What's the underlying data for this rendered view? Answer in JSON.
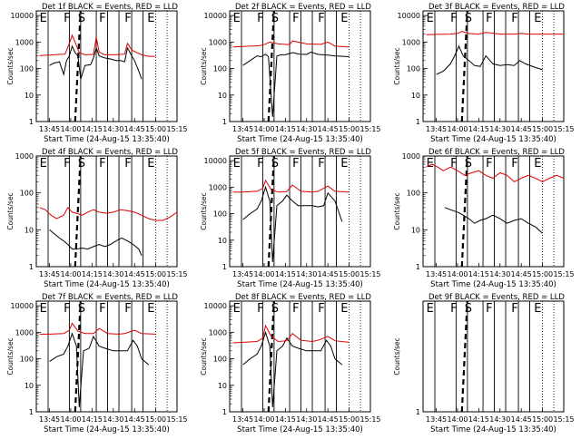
{
  "colors": {
    "events": "#000000",
    "lld": "#dd0000",
    "background": "#ffffff"
  },
  "common": {
    "xlabel": "Start Time (24-Aug-15 13:35:40)",
    "ylabel": "Counts/sec",
    "xtick_labels": [
      "13:45",
      "14:00",
      "14:15",
      "14:30",
      "14:45",
      "15:00",
      "15:15"
    ],
    "ytick_labels": [
      "1",
      "10",
      "100",
      "1000",
      "10000"
    ],
    "region_labels": [
      "E",
      "F",
      "S",
      "F",
      "F",
      "E"
    ]
  },
  "chart_data": [
    {
      "type": "line",
      "title": "Det 1f BLACK = Events, RED = LLD",
      "detector": "1f",
      "x_range": [
        "13:35:40",
        "15:15:00"
      ],
      "y_log": true,
      "ylim": [
        1,
        15000
      ],
      "series": [
        {
          "name": "Events",
          "color": "#000000",
          "x": [
            "13:45",
            "13:48",
            "13:52",
            "13:55",
            "13:57",
            "13:59",
            "14:01",
            "14:03",
            "14:05",
            "14:07",
            "14:10",
            "14:14",
            "14:16",
            "14:18",
            "14:20",
            "14:24",
            "14:28",
            "14:32",
            "14:35",
            "14:38",
            "14:40",
            "14:43",
            "14:45",
            "14:48",
            "14:50"
          ],
          "y": [
            130,
            160,
            180,
            60,
            200,
            300,
            700,
            400,
            300,
            40,
            130,
            140,
            250,
            600,
            300,
            250,
            230,
            200,
            200,
            180,
            600,
            300,
            200,
            80,
            40
          ]
        },
        {
          "name": "LLD",
          "color": "#dd0000",
          "x": [
            "13:38",
            "13:45",
            "13:52",
            "13:56",
            "13:59",
            "14:01",
            "14:03",
            "14:06",
            "14:10",
            "14:16",
            "14:18",
            "14:20",
            "14:24",
            "14:30",
            "14:38",
            "14:40",
            "14:43",
            "14:50",
            "14:55",
            "15:00"
          ],
          "y": [
            310,
            320,
            340,
            350,
            900,
            1800,
            1000,
            400,
            330,
            340,
            1500,
            420,
            330,
            330,
            350,
            900,
            500,
            330,
            290,
            290
          ]
        }
      ],
      "vlines": [
        "13:44",
        "13:59",
        "14:07",
        "14:18",
        "14:26",
        "14:34",
        "14:43",
        "14:51",
        "15:00",
        "15:08"
      ],
      "dashed": "14:05"
    },
    {
      "type": "line",
      "title": "Det 2f BLACK = Events, RED = LLD",
      "detector": "2f",
      "x_range": [
        "13:35:40",
        "15:15:00"
      ],
      "y_log": true,
      "ylim": [
        1,
        15000
      ],
      "series": [
        {
          "name": "Events",
          "color": "#000000",
          "x": [
            "13:45",
            "13:50",
            "13:55",
            "13:58",
            "14:01",
            "14:03",
            "14:06",
            "14:09",
            "14:12",
            "14:15",
            "14:20",
            "14:25",
            "14:30",
            "14:33",
            "14:38",
            "14:45",
            "14:50",
            "15:00"
          ],
          "y": [
            130,
            200,
            300,
            280,
            350,
            280,
            1.5,
            300,
            330,
            330,
            400,
            350,
            340,
            420,
            340,
            320,
            300,
            280
          ]
        },
        {
          "name": "LLD",
          "color": "#dd0000",
          "x": [
            "13:38",
            "13:45",
            "13:50",
            "13:56",
            "14:00",
            "14:04",
            "14:10",
            "14:18",
            "14:20",
            "14:30",
            "14:40",
            "14:45",
            "14:50",
            "15:00"
          ],
          "y": [
            650,
            680,
            700,
            720,
            800,
            1000,
            850,
            800,
            1100,
            850,
            820,
            1000,
            700,
            650
          ]
        }
      ],
      "vlines": [
        "13:44",
        "13:59",
        "14:07",
        "14:18",
        "14:26",
        "14:34",
        "14:43",
        "14:51",
        "15:00",
        "15:08"
      ],
      "dashed": "14:05"
    },
    {
      "type": "line",
      "title": "Det 3f BLACK = Events, RED = LLD",
      "detector": "3f",
      "x_range": [
        "13:35:40",
        "15:15:00"
      ],
      "y_log": true,
      "ylim": [
        1,
        15000
      ],
      "series": [
        {
          "name": "Events",
          "color": "#000000",
          "x": [
            "13:45",
            "13:50",
            "13:55",
            "13:58",
            "14:01",
            "14:04",
            "14:08",
            "14:12",
            "14:16",
            "14:20",
            "14:25",
            "14:30",
            "14:35",
            "14:40",
            "14:44",
            "14:48",
            "14:55",
            "15:00"
          ],
          "y": [
            60,
            80,
            150,
            300,
            700,
            300,
            200,
            130,
            120,
            300,
            150,
            130,
            140,
            130,
            200,
            150,
            110,
            90
          ]
        },
        {
          "name": "LLD",
          "color": "#dd0000",
          "x": [
            "13:38",
            "13:45",
            "13:55",
            "14:00",
            "14:03",
            "14:08",
            "14:15",
            "14:20",
            "14:30",
            "14:40",
            "14:45",
            "14:50",
            "15:00",
            "15:10",
            "15:15"
          ],
          "y": [
            1900,
            1950,
            2000,
            2100,
            2500,
            2100,
            2000,
            2300,
            2000,
            2000,
            2100,
            2000,
            2000,
            2000,
            2000
          ]
        }
      ],
      "vlines": [
        "13:44",
        "13:59",
        "14:07",
        "14:18",
        "14:26",
        "14:34",
        "14:43",
        "14:51",
        "15:00",
        "15:08"
      ],
      "dashed": "14:05"
    },
    {
      "type": "line",
      "title": "Det 4f BLACK = Events, RED = LLD",
      "detector": "4f",
      "x_range": [
        "13:35:40",
        "15:15:00"
      ],
      "y_log": true,
      "ylim": [
        1,
        1000
      ],
      "series": [
        {
          "name": "Events",
          "color": "#000000",
          "x": [
            "13:45",
            "13:48",
            "13:52",
            "13:55",
            "13:58",
            "14:01",
            "14:04",
            "14:08",
            "14:12",
            "14:16",
            "14:20",
            "14:24",
            "14:28",
            "14:32",
            "14:36",
            "14:40",
            "14:44",
            "14:48",
            "14:50"
          ],
          "y": [
            10,
            8,
            6,
            5,
            4,
            3,
            3,
            3.2,
            3,
            3.5,
            4,
            3.5,
            4,
            5,
            6,
            5,
            4,
            3,
            2
          ]
        },
        {
          "name": "LLD",
          "color": "#dd0000",
          "x": [
            "13:38",
            "13:42",
            "13:46",
            "13:50",
            "13:55",
            "13:58",
            "14:01",
            "14:04",
            "14:08",
            "14:12",
            "14:16",
            "14:20",
            "14:25",
            "14:30",
            "14:35",
            "14:40",
            "14:45",
            "14:50",
            "14:55",
            "15:00",
            "15:05",
            "15:10",
            "15:15"
          ],
          "y": [
            40,
            35,
            25,
            20,
            25,
            40,
            30,
            28,
            25,
            30,
            35,
            30,
            28,
            30,
            35,
            33,
            30,
            25,
            20,
            18,
            18,
            22,
            30
          ]
        }
      ],
      "vlines": [
        "13:44",
        "13:59",
        "14:07",
        "14:18",
        "14:26",
        "14:34",
        "14:43",
        "14:51",
        "15:00",
        "15:08"
      ],
      "dashed": "14:05"
    },
    {
      "type": "line",
      "title": "Det 5f BLACK = Events, RED = LLD",
      "detector": "5f",
      "x_range": [
        "13:35:40",
        "15:15:00"
      ],
      "y_log": true,
      "ylim": [
        1,
        15000
      ],
      "series": [
        {
          "name": "Events",
          "color": "#000000",
          "x": [
            "13:45",
            "13:50",
            "13:55",
            "13:58",
            "14:01",
            "14:04",
            "14:06",
            "14:09",
            "14:13",
            "14:16",
            "14:20",
            "14:24",
            "14:30",
            "14:34",
            "14:38",
            "14:42",
            "14:45",
            "14:50",
            "14:55"
          ],
          "y": [
            60,
            100,
            150,
            300,
            1000,
            300,
            1.5,
            200,
            300,
            500,
            300,
            200,
            200,
            200,
            180,
            200,
            600,
            300,
            50
          ]
        },
        {
          "name": "LLD",
          "color": "#dd0000",
          "x": [
            "13:38",
            "13:45",
            "13:55",
            "13:59",
            "14:01",
            "14:05",
            "14:10",
            "14:16",
            "14:20",
            "14:26",
            "14:34",
            "14:38",
            "14:45",
            "14:50",
            "15:00"
          ],
          "y": [
            650,
            650,
            700,
            900,
            1800,
            800,
            650,
            680,
            1200,
            700,
            650,
            700,
            1100,
            700,
            650
          ]
        }
      ],
      "vlines": [
        "13:44",
        "13:59",
        "14:07",
        "14:18",
        "14:26",
        "14:34",
        "14:43",
        "14:51",
        "15:00",
        "15:08"
      ],
      "dashed": "14:05"
    },
    {
      "type": "line",
      "title": "Det 6f BLACK = Events, RED = LLD",
      "detector": "6f",
      "x_range": [
        "13:35:40",
        "15:15:00"
      ],
      "y_log": true,
      "ylim": [
        1,
        1000
      ],
      "series": [
        {
          "name": "Events",
          "color": "#000000",
          "x": [
            "13:51",
            "13:55",
            "14:00",
            "14:04",
            "14:08",
            "14:12",
            "14:16",
            "14:20",
            "14:25",
            "14:30",
            "14:35",
            "14:40",
            "14:45",
            "14:50",
            "14:55",
            "15:00"
          ],
          "y": [
            40,
            35,
            30,
            25,
            20,
            15,
            18,
            20,
            25,
            20,
            15,
            18,
            20,
            15,
            12,
            8
          ]
        },
        {
          "name": "LLD",
          "color": "#dd0000",
          "x": [
            "13:38",
            "13:42",
            "13:46",
            "13:50",
            "13:55",
            "14:00",
            "14:05",
            "14:10",
            "14:15",
            "14:20",
            "14:25",
            "14:30",
            "14:35",
            "14:40",
            "14:45",
            "14:50",
            "14:55",
            "15:00",
            "15:05",
            "15:10",
            "15:15"
          ],
          "y": [
            500,
            600,
            500,
            400,
            500,
            400,
            300,
            350,
            400,
            300,
            250,
            350,
            300,
            200,
            250,
            300,
            250,
            200,
            250,
            300,
            250
          ]
        }
      ],
      "vlines": [
        "13:44",
        "13:59",
        "14:07",
        "14:18",
        "14:26",
        "14:34",
        "14:43",
        "14:51",
        "15:00",
        "15:08"
      ],
      "dashed": "14:05"
    },
    {
      "type": "line",
      "title": "Det 7f BLACK = Events, RED = LLD",
      "detector": "7f",
      "x_range": [
        "13:35:40",
        "15:15:00"
      ],
      "y_log": true,
      "ylim": [
        1,
        15000
      ],
      "series": [
        {
          "name": "Events",
          "color": "#000000",
          "x": [
            "13:45",
            "13:50",
            "13:55",
            "13:58",
            "14:01",
            "14:04",
            "14:06",
            "14:09",
            "14:13",
            "14:16",
            "14:20",
            "14:24",
            "14:30",
            "14:35",
            "14:40",
            "14:44",
            "14:47",
            "14:50",
            "14:55"
          ],
          "y": [
            80,
            120,
            150,
            300,
            900,
            300,
            1.5,
            200,
            250,
            700,
            300,
            250,
            200,
            200,
            200,
            500,
            300,
            100,
            60
          ]
        },
        {
          "name": "LLD",
          "color": "#dd0000",
          "x": [
            "13:38",
            "13:45",
            "13:55",
            "13:59",
            "14:01",
            "14:05",
            "14:10",
            "14:16",
            "14:20",
            "14:26",
            "14:34",
            "14:38",
            "14:45",
            "14:50",
            "15:00"
          ],
          "y": [
            850,
            850,
            900,
            1200,
            2200,
            1100,
            900,
            900,
            1400,
            900,
            850,
            900,
            1200,
            900,
            850
          ]
        }
      ],
      "vlines": [
        "13:44",
        "13:59",
        "14:07",
        "14:18",
        "14:26",
        "14:34",
        "14:43",
        "14:51",
        "15:00",
        "15:08"
      ],
      "dashed": "14:05"
    },
    {
      "type": "line",
      "title": "Det 8f BLACK = Events, RED = LLD",
      "detector": "8f",
      "x_range": [
        "13:35:40",
        "15:15:00"
      ],
      "y_log": true,
      "ylim": [
        1,
        15000
      ],
      "series": [
        {
          "name": "Events",
          "color": "#000000",
          "x": [
            "13:45",
            "13:50",
            "13:55",
            "13:58",
            "14:01",
            "14:04",
            "14:06",
            "14:09",
            "14:13",
            "14:16",
            "14:20",
            "14:24",
            "14:30",
            "14:35",
            "14:40",
            "14:44",
            "14:47",
            "14:50",
            "14:55"
          ],
          "y": [
            60,
            100,
            150,
            300,
            1000,
            300,
            1.5,
            200,
            300,
            600,
            300,
            250,
            200,
            200,
            200,
            500,
            300,
            100,
            60
          ]
        },
        {
          "name": "LLD",
          "color": "#dd0000",
          "x": [
            "13:38",
            "13:45",
            "13:55",
            "13:59",
            "14:01",
            "14:05",
            "14:10",
            "14:16",
            "14:20",
            "14:26",
            "14:34",
            "14:38",
            "14:45",
            "14:50",
            "15:00"
          ],
          "y": [
            400,
            420,
            450,
            600,
            1800,
            700,
            450,
            480,
            900,
            500,
            450,
            500,
            700,
            480,
            420
          ]
        }
      ],
      "vlines": [
        "13:44",
        "13:59",
        "14:07",
        "14:18",
        "14:26",
        "14:34",
        "14:43",
        "14:51",
        "15:00",
        "15:08"
      ],
      "dashed": "14:05"
    },
    {
      "type": "line",
      "title": "Det 9f BLACK = Events, RED = LLD",
      "detector": "9f",
      "x_range": [
        "13:35:40",
        "15:15:00"
      ],
      "y_log": true,
      "ylim": [
        1,
        15000
      ],
      "series": [],
      "vlines": [
        "13:44",
        "13:59",
        "14:07",
        "14:18",
        "14:26",
        "14:34",
        "14:43",
        "14:51",
        "15:00",
        "15:08"
      ],
      "dashed": "14:05",
      "yticks_hidden": true
    }
  ]
}
